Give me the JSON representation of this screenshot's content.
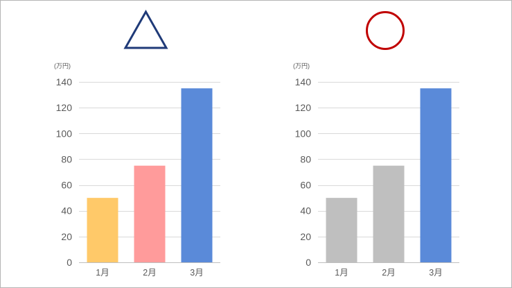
{
  "marks": [
    {
      "icon": "triangle-outline-icon",
      "color": "#1F3A78"
    },
    {
      "icon": "circle-outline-icon",
      "color": "#C00000"
    }
  ],
  "chart_data": [
    {
      "type": "bar",
      "categories": [
        "1月",
        "2月",
        "3月"
      ],
      "values": [
        50,
        75,
        135
      ],
      "ylabel": "(万円)",
      "ylim": [
        0,
        140
      ],
      "yticks": [
        0,
        20,
        40,
        60,
        80,
        100,
        120,
        140
      ],
      "grid": true,
      "bar_colors": [
        "#FFC969",
        "#FF9B9B",
        "#5A8AD9"
      ]
    },
    {
      "type": "bar",
      "categories": [
        "1月",
        "2月",
        "3月"
      ],
      "values": [
        50,
        75,
        135
      ],
      "ylabel": "(万円)",
      "ylim": [
        0,
        140
      ],
      "yticks": [
        0,
        20,
        40,
        60,
        80,
        100,
        120,
        140
      ],
      "grid": true,
      "bar_colors": [
        "#BFBFBF",
        "#BFBFBF",
        "#5A8AD9"
      ]
    }
  ]
}
